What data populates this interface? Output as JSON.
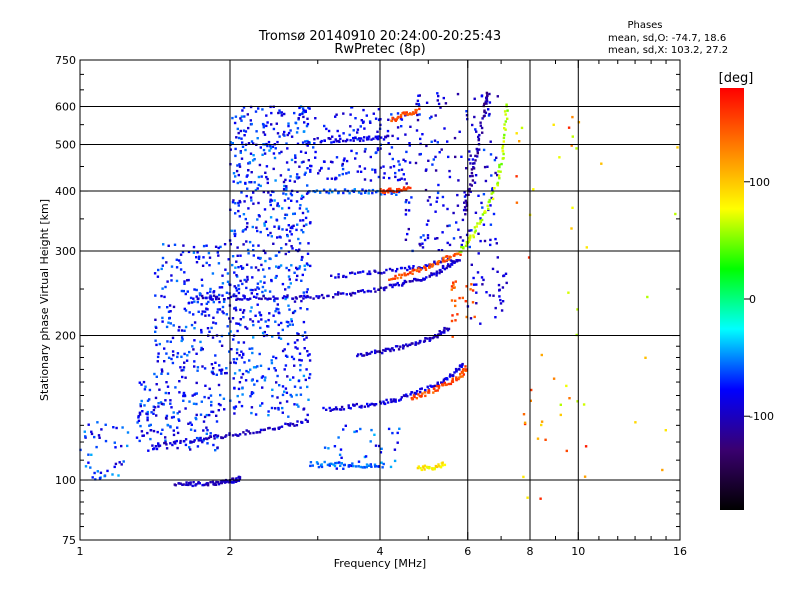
{
  "chart_data": {
    "type": "scatter",
    "title": "Tromsø 20140910 20:24:00-20:25:43",
    "subtitle": "RwPretec (8p)",
    "xlabel": "Frequency [MHz]",
    "ylabel": "Stationary phase Virtual Height [km]",
    "x_scale": "log",
    "y_scale": "log",
    "xlim": [
      1,
      16
    ],
    "ylim": [
      75,
      750
    ],
    "x_ticks": [
      1,
      2,
      4,
      6,
      8,
      10,
      16
    ],
    "y_ticks": [
      75,
      100,
      200,
      300,
      400,
      500,
      600,
      750
    ],
    "x_gridlines": [
      2,
      4,
      6,
      8,
      10
    ],
    "y_gridlines": [
      100,
      200,
      300,
      400,
      500,
      600
    ],
    "grid": true,
    "colorbar": {
      "title": "[deg]",
      "range": [
        -180,
        180
      ],
      "ticks": [
        -100,
        0,
        100
      ],
      "colormap": "rainbow",
      "stops": [
        "#000000",
        "#3a0070",
        "#0000ff",
        "#00ffff",
        "#00ff00",
        "#ffff00",
        "#ff8000",
        "#ff0000"
      ]
    },
    "stats": {
      "header": "Phases",
      "line_o": "mean, sd,O: -74.7, 18.6",
      "line_x": "mean, sd,X: 103.2, 27.2"
    },
    "traces": [
      {
        "phase": -100,
        "points": [
          [
            1.55,
            98
          ],
          [
            1.7,
            98
          ],
          [
            1.85,
            98.5
          ],
          [
            1.95,
            99
          ],
          [
            2.05,
            100
          ],
          [
            2.1,
            101
          ]
        ]
      },
      {
        "phase": -95,
        "points": [
          [
            1.4,
            118
          ],
          [
            1.6,
            120
          ],
          [
            1.8,
            122
          ],
          [
            2.0,
            124
          ],
          [
            2.3,
            127
          ],
          [
            2.6,
            130
          ],
          [
            2.9,
            133
          ]
        ]
      },
      {
        "phase": -95,
        "points": [
          [
            1.7,
            240
          ],
          [
            1.9,
            240
          ],
          [
            2.2,
            240
          ],
          [
            2.6,
            240
          ],
          [
            3.0,
            241
          ],
          [
            3.5,
            245
          ],
          [
            4.0,
            250
          ],
          [
            4.4,
            256
          ],
          [
            4.8,
            262
          ],
          [
            5.2,
            270
          ],
          [
            5.5,
            280
          ],
          [
            5.8,
            290
          ]
        ]
      },
      {
        "phase": -90,
        "points": [
          [
            3.1,
            140
          ],
          [
            3.5,
            142
          ],
          [
            3.9,
            144
          ],
          [
            4.3,
            147
          ],
          [
            4.7,
            152
          ],
          [
            5.2,
            158
          ],
          [
            5.6,
            166
          ],
          [
            5.9,
            175
          ]
        ]
      },
      {
        "phase": -100,
        "points": [
          [
            3.6,
            182
          ],
          [
            4.0,
            185
          ],
          [
            4.4,
            189
          ],
          [
            4.8,
            194
          ],
          [
            5.2,
            200
          ],
          [
            5.5,
            208
          ]
        ]
      },
      {
        "phase": -90,
        "points": [
          [
            3.2,
            265
          ],
          [
            3.8,
            270
          ],
          [
            4.4,
            274
          ],
          [
            5.0,
            280
          ],
          [
            5.6,
            290
          ]
        ]
      },
      {
        "phase": -110,
        "points": [
          [
            5.9,
            360
          ],
          [
            6.1,
            420
          ],
          [
            6.3,
            500
          ],
          [
            6.5,
            600
          ],
          [
            6.6,
            640
          ]
        ]
      },
      {
        "phase": 60,
        "points": [
          [
            5.8,
            300
          ],
          [
            6.1,
            320
          ],
          [
            6.5,
            360
          ],
          [
            6.9,
            420
          ],
          [
            7.1,
            500
          ],
          [
            7.2,
            620
          ]
        ]
      },
      {
        "phase": 150,
        "points": [
          [
            4.6,
            148
          ],
          [
            5.0,
            152
          ],
          [
            5.4,
            158
          ],
          [
            5.8,
            165
          ],
          [
            6.0,
            172
          ]
        ]
      },
      {
        "phase": 150,
        "points": [
          [
            4.2,
            262
          ],
          [
            4.6,
            270
          ],
          [
            5.0,
            278
          ],
          [
            5.4,
            288
          ],
          [
            5.8,
            298
          ]
        ]
      },
      {
        "phase": 85,
        "points": [
          [
            4.8,
            106
          ],
          [
            5.1,
            106
          ],
          [
            5.4,
            108
          ]
        ]
      },
      {
        "phase": -60,
        "points": [
          [
            2.9,
            108
          ],
          [
            3.3,
            108
          ],
          [
            3.7,
            107
          ],
          [
            4.1,
            107
          ]
        ]
      },
      {
        "phase": -60,
        "points": [
          [
            2.9,
            400
          ],
          [
            3.4,
            400
          ],
          [
            3.9,
            398
          ],
          [
            4.4,
            396
          ]
        ]
      },
      {
        "phase": -90,
        "points": [
          [
            3.0,
            510
          ],
          [
            3.4,
            512
          ],
          [
            3.8,
            515
          ],
          [
            4.2,
            518
          ]
        ]
      },
      {
        "phase": 160,
        "points": [
          [
            4.0,
            400
          ],
          [
            4.3,
            402
          ],
          [
            4.6,
            404
          ]
        ]
      },
      {
        "phase": 150,
        "points": [
          [
            4.2,
            560
          ],
          [
            4.5,
            580
          ],
          [
            4.8,
            590
          ]
        ]
      }
    ],
    "clouds": [
      {
        "x": [
          1.0,
          1.25
        ],
        "y": [
          100,
          132
        ],
        "phases": [
          -100,
          -40
        ],
        "n": 45
      },
      {
        "x": [
          1.3,
          1.95
        ],
        "y": [
          115,
          160
        ],
        "phases": [
          -100,
          -50
        ],
        "n": 160
      },
      {
        "x": [
          1.4,
          2.0
        ],
        "y": [
          160,
          310
        ],
        "phases": [
          -100,
          -50
        ],
        "n": 240
      },
      {
        "x": [
          2.0,
          2.9
        ],
        "y": [
          135,
          330
        ],
        "phases": [
          -100,
          -45
        ],
        "n": 380
      },
      {
        "x": [
          2.0,
          2.9
        ],
        "y": [
          330,
          600
        ],
        "phases": [
          -100,
          -45
        ],
        "n": 300
      },
      {
        "x": [
          2.8,
          4.5
        ],
        "y": [
          420,
          600
        ],
        "phases": [
          -100,
          -60
        ],
        "n": 150
      },
      {
        "x": [
          4.5,
          6.9
        ],
        "y": [
          300,
          640
        ],
        "phases": [
          -115,
          -60
        ],
        "n": 180
      },
      {
        "x": [
          6.0,
          7.2
        ],
        "y": [
          210,
          300
        ],
        "phases": [
          -110,
          -80
        ],
        "n": 35
      },
      {
        "x": [
          3.0,
          4.4
        ],
        "y": [
          105,
          130
        ],
        "phases": [
          -90,
          -40
        ],
        "n": 40
      },
      {
        "x": [
          7.5,
          10.5
        ],
        "y": [
          90,
          600
        ],
        "phases": [
          60,
          170
        ],
        "n": 45
      },
      {
        "x": [
          5.5,
          6.2
        ],
        "y": [
          195,
          260
        ],
        "phases": [
          130,
          165
        ],
        "n": 25
      },
      {
        "x": [
          11,
          16
        ],
        "y": [
          100,
          660
        ],
        "phases": [
          60,
          120
        ],
        "n": 8
      }
    ]
  }
}
